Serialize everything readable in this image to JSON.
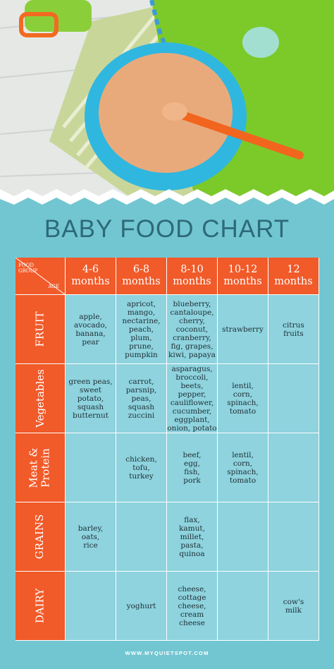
{
  "title": "BABY FOOD CHART",
  "table": {
    "corner": {
      "top": "FOOD GROUP",
      "bottom": "AGE"
    },
    "columns": [
      [
        "4-6",
        "months"
      ],
      [
        "6-8",
        "months"
      ],
      [
        "8-10",
        "months"
      ],
      [
        "10-12",
        "months"
      ],
      [
        "12",
        "months"
      ]
    ],
    "rows": [
      {
        "group": [
          "FRUIT"
        ],
        "cells": [
          [
            "apple,",
            "avocado,",
            "banana,",
            "pear"
          ],
          [
            "apricot,",
            "mango,",
            "nectarine,",
            "peach,",
            "plum,",
            "prune,",
            "pumpkin"
          ],
          [
            "blueberry,",
            "cantaloupe,",
            "cherry,",
            "coconut,",
            "cranberry,",
            "fig, grapes,",
            "kiwi, papaya"
          ],
          [
            "strawberry"
          ],
          [
            "citrus",
            "fruits"
          ]
        ]
      },
      {
        "group": [
          "Vegetables"
        ],
        "cells": [
          [
            "green peas,",
            "sweet potato,",
            "squash",
            "butternut"
          ],
          [
            "carrot,",
            "parsnip,",
            "peas,",
            "squash",
            "zuccini"
          ],
          [
            "asparagus,",
            "broccoli,",
            "beets, pepper,",
            "cauliflower,",
            "cucumber,",
            "eggplant,",
            "onion, potato"
          ],
          [
            "lentil,",
            "corn,",
            "spinach,",
            "tomato"
          ],
          []
        ]
      },
      {
        "group": [
          "Meat &",
          "Protein"
        ],
        "cells": [
          [],
          [
            "chicken,",
            "tofu,",
            "turkey"
          ],
          [
            "beef,",
            "egg,",
            "fish,",
            "pork"
          ],
          [
            "lentil,",
            "corn,",
            "spinach,",
            "tomato"
          ],
          []
        ]
      },
      {
        "group": [
          "GRAINS"
        ],
        "cells": [
          [
            "barley,",
            "oats,",
            "rice"
          ],
          [],
          [
            "flax,",
            "kamut,",
            "millet,",
            "pasta,",
            "quinoa"
          ],
          [],
          []
        ]
      },
      {
        "group": [
          "DAIRY"
        ],
        "cells": [
          [],
          [
            "yoghurt"
          ],
          [
            "cheese,",
            "cottage",
            "cheese,",
            "cream",
            "cheese"
          ],
          [],
          [
            "cow's",
            "milk"
          ]
        ]
      }
    ]
  },
  "footer": "WWW.MYQUIETSPOT.COM"
}
